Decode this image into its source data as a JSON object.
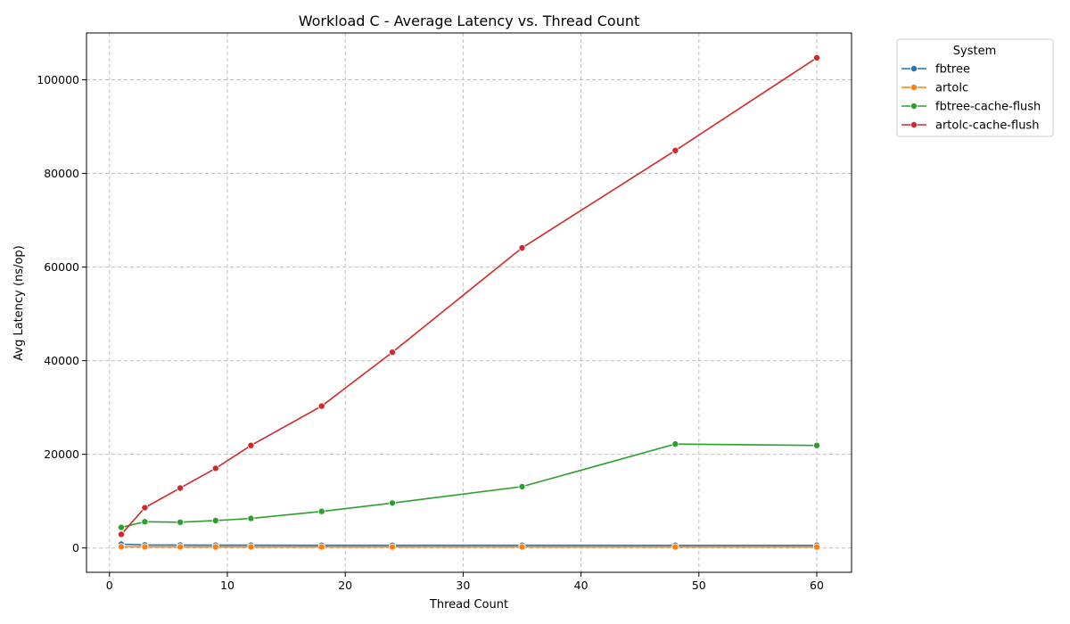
{
  "chart_data": {
    "type": "line",
    "title": "Workload C - Average Latency vs. Thread Count",
    "xlabel": "Thread Count",
    "ylabel": "Avg Latency (ns/op)",
    "xlim": [
      -1.95,
      62.95
    ],
    "ylim": [
      -5200,
      110000
    ],
    "xticks": [
      0,
      10,
      20,
      30,
      40,
      50,
      60
    ],
    "yticks": [
      0,
      20000,
      40000,
      60000,
      80000,
      100000
    ],
    "grid": true,
    "legend": {
      "title": "System",
      "placement": "outside-top-right"
    },
    "x": [
      1,
      3,
      6,
      9,
      12,
      18,
      24,
      35,
      48,
      60
    ],
    "series": [
      {
        "name": "fbtree",
        "color": "#1f77b4",
        "values": [
          800,
          650,
          620,
          600,
          590,
          580,
          570,
          570,
          560,
          560
        ]
      },
      {
        "name": "artolc",
        "color": "#ff7f0e",
        "values": [
          250,
          230,
          220,
          215,
          210,
          210,
          210,
          210,
          210,
          210
        ]
      },
      {
        "name": "fbtree-cache-flush",
        "color": "#2ca02c",
        "values": [
          4400,
          5600,
          5500,
          5850,
          6300,
          7800,
          9600,
          13100,
          22200,
          21900
        ]
      },
      {
        "name": "artolc-cache-flush",
        "color": "#d62728",
        "values": [
          2900,
          8600,
          12800,
          17000,
          21900,
          30300,
          41800,
          64100,
          84900,
          104700
        ]
      }
    ]
  }
}
